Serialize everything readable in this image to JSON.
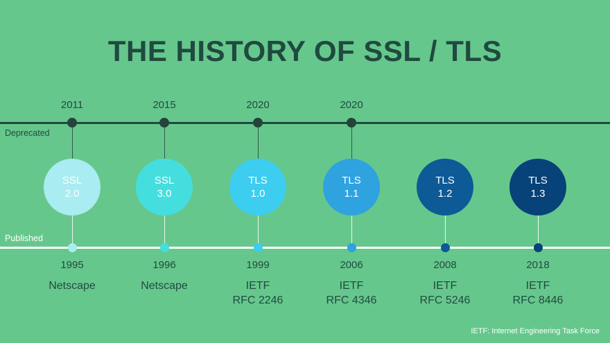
{
  "title": "THE HISTORY OF SSL / TLS",
  "labels": {
    "deprecated": "Deprecated",
    "published": "Published"
  },
  "footnote": "IETF: Internet Engineering Task Force",
  "versions": [
    {
      "name": "SSL",
      "num": "2.0",
      "published": "1995",
      "org1": "Netscape",
      "org2": "",
      "deprecated": "2011",
      "color": "#a9ecf1",
      "dot_color": "#a9ecf1"
    },
    {
      "name": "SSL",
      "num": "3.0",
      "published": "1996",
      "org1": "Netscape",
      "org2": "",
      "deprecated": "2015",
      "color": "#45dede",
      "dot_color": "#45dede"
    },
    {
      "name": "TLS",
      "num": "1.0",
      "published": "1999",
      "org1": "IETF",
      "org2": "RFC 2246",
      "deprecated": "2020",
      "color": "#3ccdf0",
      "dot_color": "#3ccdf0"
    },
    {
      "name": "TLS",
      "num": "1.1",
      "published": "2006",
      "org1": "IETF",
      "org2": "RFC 4346",
      "deprecated": "2020",
      "color": "#2fa2e0",
      "dot_color": "#2fa2e0"
    },
    {
      "name": "TLS",
      "num": "1.2",
      "published": "2008",
      "org1": "IETF",
      "org2": "RFC 5246",
      "deprecated": "",
      "color": "#0d5a96",
      "dot_color": "#0d5a96"
    },
    {
      "name": "TLS",
      "num": "1.3",
      "published": "2018",
      "org1": "IETF",
      "org2": "RFC 8446",
      "deprecated": "",
      "color": "#074278",
      "dot_color": "#074278"
    }
  ]
}
